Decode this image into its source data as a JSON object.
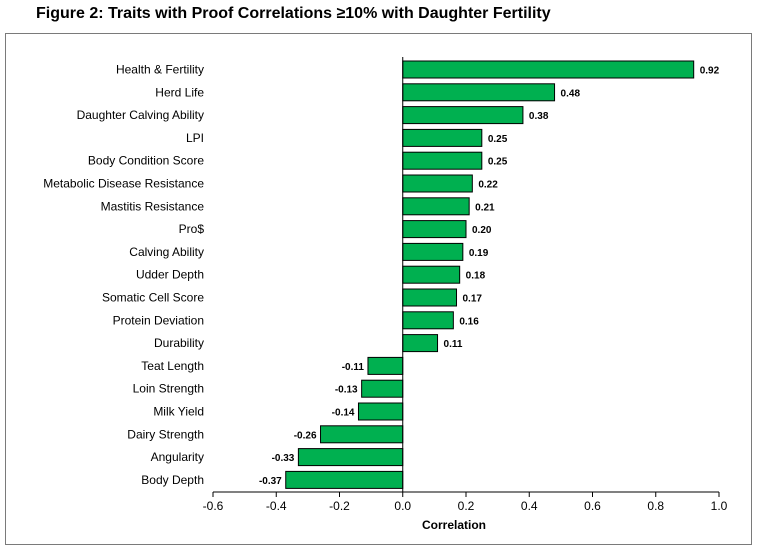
{
  "title": "Figure 2: Traits with Proof Correlations ≥10% with Daughter Fertility",
  "chart_data": {
    "type": "bar",
    "orientation": "horizontal",
    "categories": [
      "Health & Fertility",
      "Herd Life",
      "Daughter Calving Ability",
      "LPI",
      "Body Condition Score",
      "Metabolic Disease Resistance",
      "Mastitis Resistance",
      "Pro$",
      "Calving Ability",
      "Udder Depth",
      "Somatic Cell Score",
      "Protein Deviation",
      "Durability",
      "Teat Length",
      "Loin Strength",
      "Milk Yield",
      "Dairy Strength",
      "Angularity",
      "Body Depth"
    ],
    "values": [
      0.92,
      0.48,
      0.38,
      0.25,
      0.25,
      0.22,
      0.21,
      0.2,
      0.19,
      0.18,
      0.17,
      0.16,
      0.11,
      -0.11,
      -0.13,
      -0.14,
      -0.26,
      -0.33,
      -0.37
    ],
    "value_labels": [
      "0.92",
      "0.48",
      "0.38",
      "0.25",
      "0.25",
      "0.22",
      "0.21",
      "0.20",
      "0.19",
      "0.18",
      "0.17",
      "0.16",
      "0.11",
      "-0.11",
      "-0.13",
      "-0.14",
      "-0.26",
      "-0.33",
      "-0.37"
    ],
    "xlabel": "Correlation",
    "ylabel": "",
    "xlim": [
      -0.6,
      1.0
    ],
    "xticks": [
      -0.6,
      -0.4,
      -0.2,
      0.0,
      0.2,
      0.4,
      0.6,
      0.8,
      1.0
    ],
    "xtick_labels": [
      "-0.6",
      "-0.4",
      "-0.2",
      "0.0",
      "0.2",
      "0.4",
      "0.6",
      "0.8",
      "1.0"
    ],
    "grid": false,
    "legend": false,
    "bar_color": "#00b050",
    "bar_edge_color": "#000000"
  }
}
